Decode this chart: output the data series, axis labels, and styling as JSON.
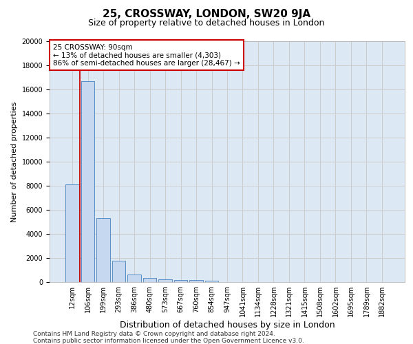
{
  "title1": "25, CROSSWAY, LONDON, SW20 9JA",
  "title2": "Size of property relative to detached houses in London",
  "xlabel": "Distribution of detached houses by size in London",
  "ylabel": "Number of detached properties",
  "categories": [
    "12sqm",
    "106sqm",
    "199sqm",
    "293sqm",
    "386sqm",
    "480sqm",
    "573sqm",
    "667sqm",
    "760sqm",
    "854sqm",
    "947sqm",
    "1041sqm",
    "1134sqm",
    "1228sqm",
    "1321sqm",
    "1415sqm",
    "1508sqm",
    "1602sqm",
    "1695sqm",
    "1789sqm",
    "1882sqm"
  ],
  "values": [
    8100,
    16700,
    5300,
    1750,
    620,
    330,
    230,
    175,
    150,
    130,
    0,
    0,
    0,
    0,
    0,
    0,
    0,
    0,
    0,
    0,
    0
  ],
  "bar_color": "#c5d8f0",
  "bar_edge_color": "#5a8fc4",
  "vline_color": "#cc0000",
  "annotation_text": "25 CROSSWAY: 90sqm\n← 13% of detached houses are smaller (4,303)\n86% of semi-detached houses are larger (28,467) →",
  "annotation_box_color": "#ffffff",
  "annotation_box_edge": "#cc0000",
  "ylim": [
    0,
    20000
  ],
  "yticks": [
    0,
    2000,
    4000,
    6000,
    8000,
    10000,
    12000,
    14000,
    16000,
    18000,
    20000
  ],
  "grid_color": "#cccccc",
  "bg_color": "#dde8f5",
  "footer1": "Contains HM Land Registry data © Crown copyright and database right 2024.",
  "footer2": "Contains public sector information licensed under the Open Government Licence v3.0.",
  "title1_fontsize": 11,
  "title2_fontsize": 9,
  "xlabel_fontsize": 9,
  "ylabel_fontsize": 8,
  "tick_fontsize": 7,
  "footer_fontsize": 6.5,
  "annotation_fontsize": 7.5
}
